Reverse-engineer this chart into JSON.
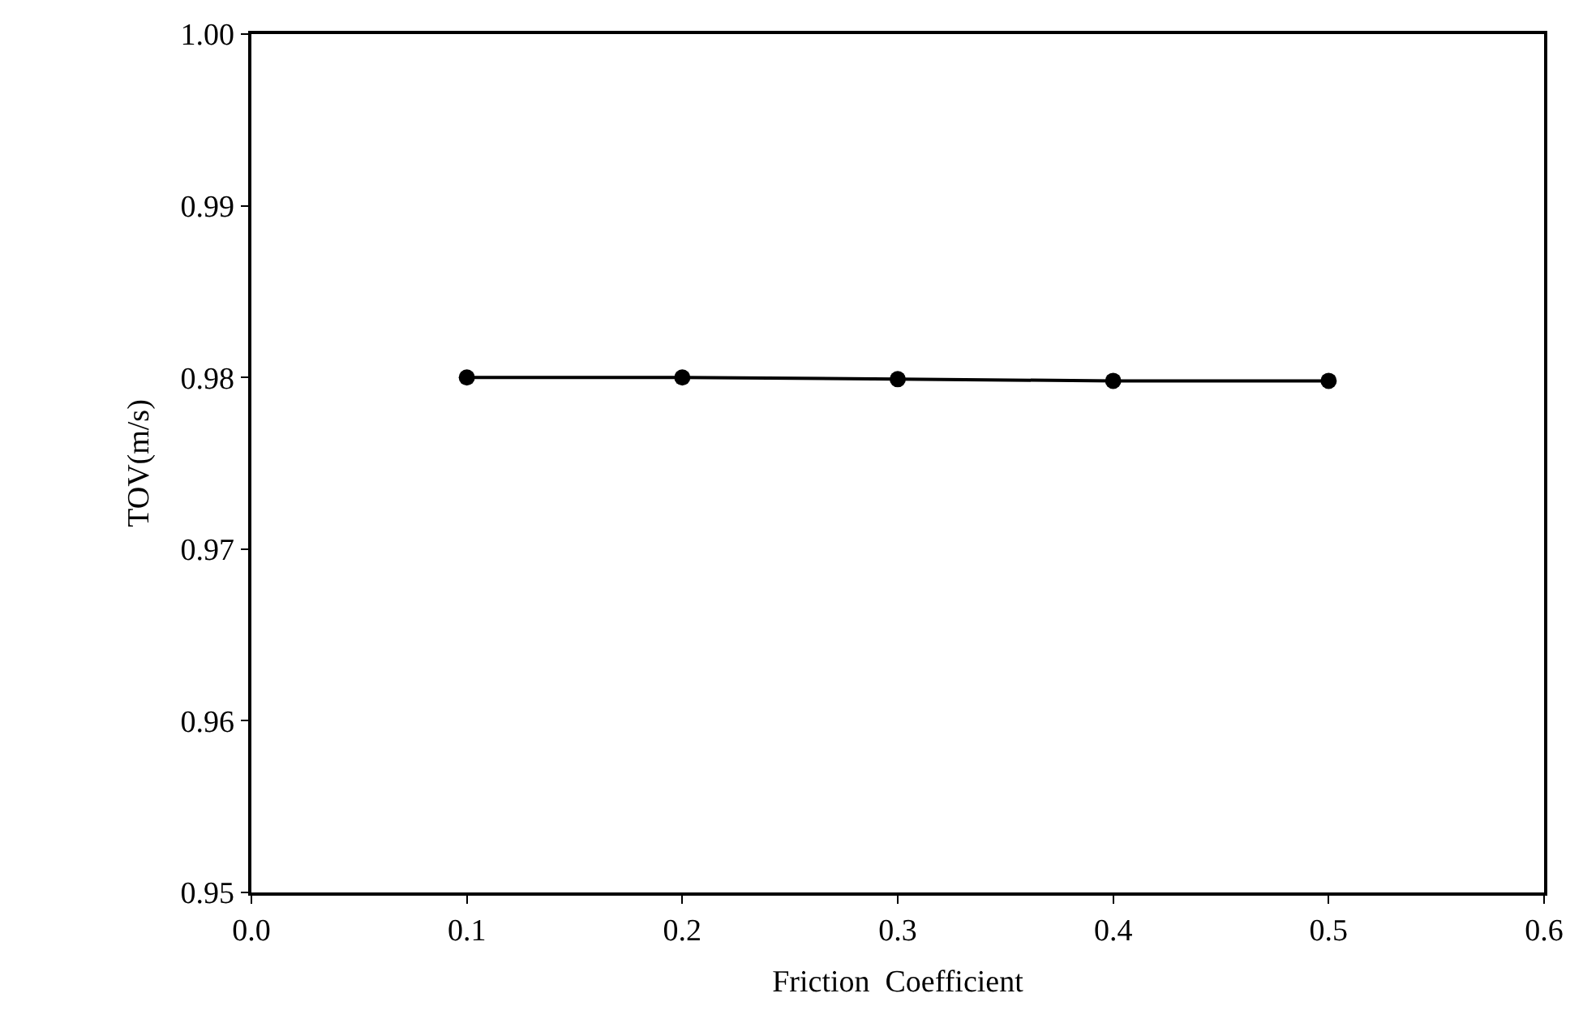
{
  "chart_data": {
    "type": "line",
    "xlabel": "Friction  Coefficient",
    "ylabel": "TOV(m/s)",
    "x": [
      0.1,
      0.2,
      0.3,
      0.4,
      0.5
    ],
    "series": [
      {
        "color": "#000000",
        "values": [
          0.98,
          0.98,
          0.9799,
          0.9798,
          0.9798
        ]
      }
    ],
    "xlim": [
      0.0,
      0.6
    ],
    "xticks": [
      {
        "value": 0,
        "label": "0.0"
      },
      0.1,
      0.2,
      0.3,
      0.4,
      0.5,
      0.6
    ],
    "ylim": [
      0.95,
      1.0
    ],
    "yticks": [
      0.95,
      0.96,
      0.97,
      0.98,
      0.99,
      {
        "value": 1,
        "label": "1.00"
      }
    ],
    "grid": false,
    "marker": "circle",
    "line_style": "solid"
  }
}
